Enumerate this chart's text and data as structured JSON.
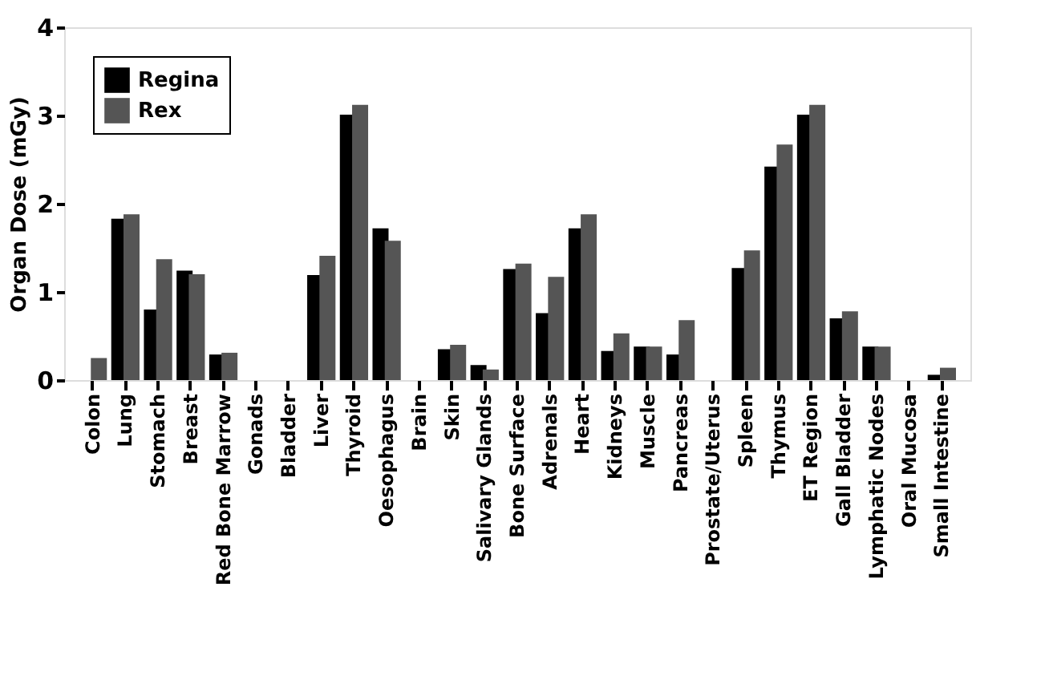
{
  "chart_data": {
    "type": "bar",
    "ylabel": "Organ Dose (mGy)",
    "categories": [
      "Colon",
      "Lung",
      "Stomach",
      "Breast",
      "Red Bone Marrow",
      "Gonads",
      "Bladder",
      "Liver",
      "Thyroid",
      "Oesophagus",
      "Brain",
      "Skin",
      "Salivary Glands",
      "Bone Surface",
      "Adrenals",
      "Heart",
      "Kidneys",
      "Muscle",
      "Pancreas",
      "Prostate/Uterus",
      "Spleen",
      "Thymus",
      "ET Region",
      "Gall Bladder",
      "Lymphatic Nodes",
      "Oral Mucosa",
      "Small Intestine"
    ],
    "series": [
      {
        "name": "Regina",
        "color": "#000000",
        "values": [
          0,
          1.83,
          0.8,
          1.24,
          0.29,
          0,
          0,
          1.19,
          3.01,
          1.72,
          0,
          0.35,
          0.17,
          1.26,
          0.76,
          1.72,
          0.33,
          0.38,
          0.29,
          0,
          1.27,
          2.42,
          3.01,
          0.7,
          0.38,
          0,
          0.06
        ]
      },
      {
        "name": "Rex",
        "color": "#555555",
        "values": [
          0.25,
          1.88,
          1.37,
          1.2,
          0.31,
          0,
          0,
          1.41,
          3.12,
          1.58,
          0,
          0.4,
          0.12,
          1.32,
          1.17,
          1.88,
          0.53,
          0.38,
          0.68,
          0,
          1.47,
          2.67,
          3.12,
          0.78,
          0.38,
          0,
          0.14
        ]
      }
    ],
    "ylim": [
      0,
      4
    ],
    "yticks": [
      0,
      1,
      2,
      3,
      4
    ],
    "grid": false,
    "legend": "top left"
  }
}
